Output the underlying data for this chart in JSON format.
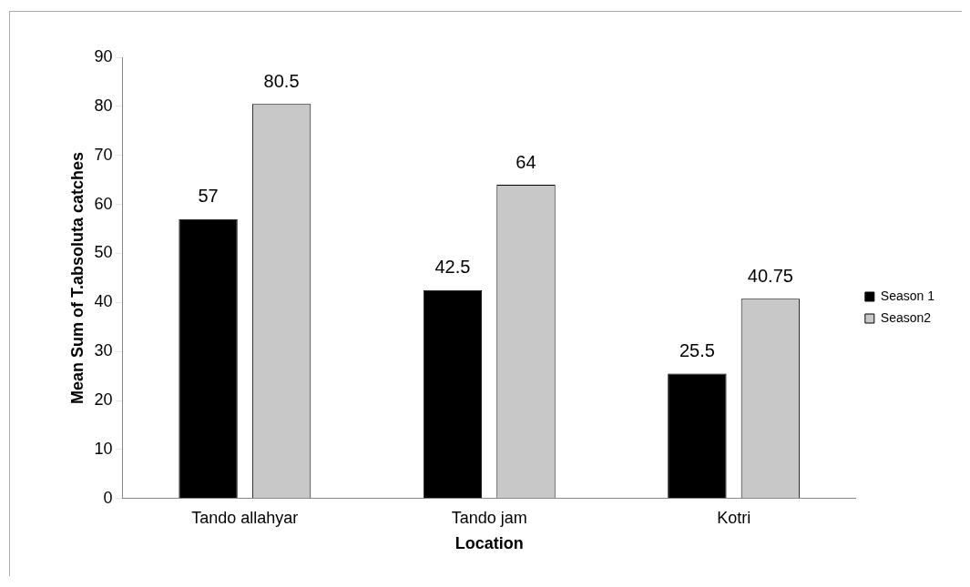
{
  "chart_data": {
    "type": "bar",
    "xlabel": "Location",
    "ylabel": "Mean Sum of T.absoluta catches",
    "categories": [
      "Tando allahyar",
      "Tando jam",
      "Kotri"
    ],
    "series": [
      {
        "name": "Season 1",
        "color": "#000000",
        "values": [
          57,
          42.5,
          25.5
        ]
      },
      {
        "name": "Season2",
        "color": "#c8c8c8",
        "values": [
          80.5,
          64,
          40.75
        ]
      }
    ],
    "ylim": [
      0,
      90
    ],
    "yticks": [
      0,
      10,
      20,
      30,
      40,
      50,
      60,
      70,
      80,
      90
    ],
    "grid": false,
    "legend": "right",
    "data_labels": true
  }
}
